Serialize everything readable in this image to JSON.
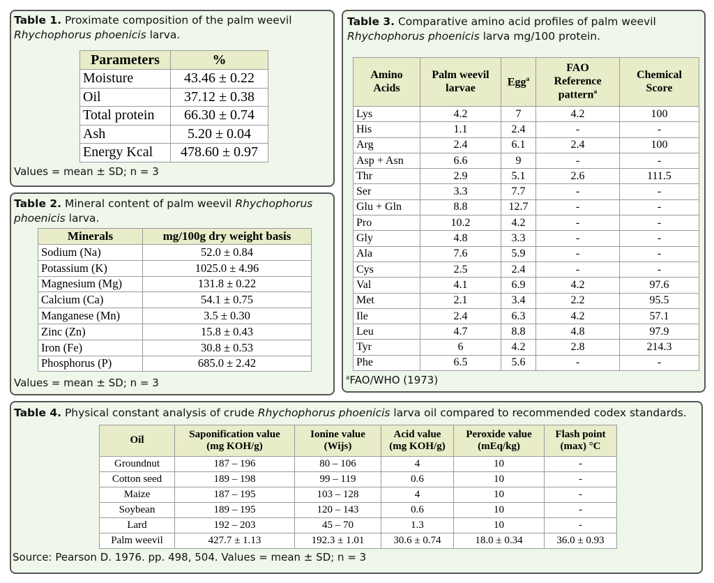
{
  "tables": [
    {
      "caption": {
        "label": "Table 1.",
        "parts": [
          {
            "text": " Proximate composition of the palm weevil "
          },
          {
            "text": "Rhychophorus phoenicis",
            "italic": true
          },
          {
            "text": " larva."
          }
        ]
      },
      "header": [
        {
          "lines": [
            "Parameters"
          ]
        },
        {
          "lines": [
            "%"
          ]
        }
      ],
      "rows": [
        [
          "Moisture",
          "43.46 ± 0.22"
        ],
        [
          "Oil",
          "37.12 ± 0.38"
        ],
        [
          "Total protein",
          "66.30 ± 0.74"
        ],
        [
          "Ash",
          "5.20 ± 0.04"
        ],
        [
          "Energy Kcal",
          "478.60 ± 0.97"
        ]
      ],
      "note": "Values = mean ± SD; n = 3"
    },
    {
      "caption": {
        "label": "Table 2.",
        "parts": [
          {
            "text": " Mineral content of palm weevil "
          },
          {
            "text": "Rhychophorus phoenicis",
            "italic": true
          },
          {
            "text": " larva."
          }
        ]
      },
      "header": [
        {
          "lines": [
            "Minerals"
          ]
        },
        {
          "lines": [
            "mg/100g dry weight basis"
          ]
        }
      ],
      "rows": [
        [
          "Sodium (Na)",
          "52.0 ± 0.84"
        ],
        [
          "Potassium (K)",
          "1025.0 ± 4.96"
        ],
        [
          "Magnesium (Mg)",
          "131.8 ± 0.22"
        ],
        [
          "Calcium (Ca)",
          "54.1 ± 0.75"
        ],
        [
          "Manganese (Mn)",
          "3.5 ± 0.30"
        ],
        [
          "Zinc (Zn)",
          "15.8 ± 0.43"
        ],
        [
          "Iron (Fe)",
          "30.8 ± 0.53"
        ],
        [
          "Phosphorus (P)",
          "685.0 ± 2.42"
        ]
      ],
      "note": "Values = mean ± SD; n = 3"
    },
    {
      "caption": {
        "label": "Table 3.",
        "parts": [
          {
            "text": " Comparative amino acid profiles of palm weevil "
          },
          {
            "text": "Rhychophorus phoenicis",
            "italic": true
          },
          {
            "text": " larva mg/100 protein."
          }
        ]
      },
      "header": [
        {
          "lines": [
            "Amino",
            "Acids"
          ]
        },
        {
          "lines": [
            "Palm weevil",
            "larvae"
          ]
        },
        {
          "lines": [
            "Egg"
          ],
          "sup": "a"
        },
        {
          "lines": [
            "FAO",
            "Reference",
            "pattern"
          ],
          "sup": "a"
        },
        {
          "lines": [
            "Chemical",
            "Score"
          ]
        }
      ],
      "rows": [
        [
          "Lys",
          "4.2",
          "7",
          "4.2",
          "100"
        ],
        [
          "His",
          "1.1",
          "2.4",
          "-",
          "-"
        ],
        [
          "Arg",
          "2.4",
          "6.1",
          "2.4",
          "100"
        ],
        [
          "Asp + Asn",
          "6.6",
          "9",
          "-",
          "-"
        ],
        [
          "Thr",
          "2.9",
          "5.1",
          "2.6",
          "111.5"
        ],
        [
          "Ser",
          "3.3",
          "7.7",
          "-",
          "-"
        ],
        [
          "Glu + Gln",
          "8.8",
          "12.7",
          "-",
          "-"
        ],
        [
          "Pro",
          "10.2",
          "4.2",
          "-",
          "-"
        ],
        [
          "Gly",
          "4.8",
          "3.3",
          "-",
          "-"
        ],
        [
          "Ala",
          "7.6",
          "5.9",
          "-",
          "-"
        ],
        [
          "Cys",
          "2.5",
          "2.4",
          "-",
          "-"
        ],
        [
          "Val",
          "4.1",
          "6.9",
          "4.2",
          "97.6"
        ],
        [
          "Met",
          "2.1",
          "3.4",
          "2.2",
          "95.5"
        ],
        [
          "Ile",
          "2.4",
          "6.3",
          "4.2",
          "57.1"
        ],
        [
          "Leu",
          "4.7",
          "8.8",
          "4.8",
          "97.9"
        ],
        [
          "Tyr",
          "6",
          "4.2",
          "2.8",
          "214.3"
        ],
        [
          "Phe",
          "6.5",
          "5.6",
          "-",
          "-"
        ]
      ],
      "note_mark": "a",
      "note": "FAO/WHO (1973)"
    },
    {
      "caption": {
        "label": "Table 4.",
        "parts": [
          {
            "text": " Physical constant analysis of crude "
          },
          {
            "text": "Rhychophorus phoenicis",
            "italic": true
          },
          {
            "text": " larva oil compared to recommended codex standards."
          }
        ]
      },
      "header": [
        {
          "lines": [
            "Oil"
          ]
        },
        {
          "lines": [
            "Saponification value",
            "(mg KOH/g)"
          ]
        },
        {
          "lines": [
            "Ionine value",
            "(Wijs)"
          ]
        },
        {
          "lines": [
            "Acid value",
            "(mg KOH/g)"
          ]
        },
        {
          "lines": [
            "Peroxide value",
            "(mEq/kg)"
          ]
        },
        {
          "lines": [
            "Flash point",
            "(max) °C"
          ]
        }
      ],
      "rows": [
        [
          "Groundnut",
          "187 – 196",
          "80 – 106",
          "4",
          "10",
          "-"
        ],
        [
          "Cotton seed",
          "189 – 198",
          "99 – 119",
          "0.6",
          "10",
          "-"
        ],
        [
          "Maize",
          "187 – 195",
          "103 – 128",
          "4",
          "10",
          "-"
        ],
        [
          "Soybean",
          "189 – 195",
          "120 – 143",
          "0.6",
          "10",
          "-"
        ],
        [
          "Lard",
          "192 – 203",
          "45 – 70",
          "1.3",
          "10",
          "-"
        ],
        [
          "Palm weevil",
          "427.7 ± 1.13",
          "192.3 ± 1.01",
          "30.6 ± 0.74",
          "18.0 ± 0.34",
          "36.0 ± 0.93"
        ]
      ],
      "note": "Source: Pearson D. 1976. pp. 498, 504. Values = mean ± SD; n = 3"
    }
  ]
}
